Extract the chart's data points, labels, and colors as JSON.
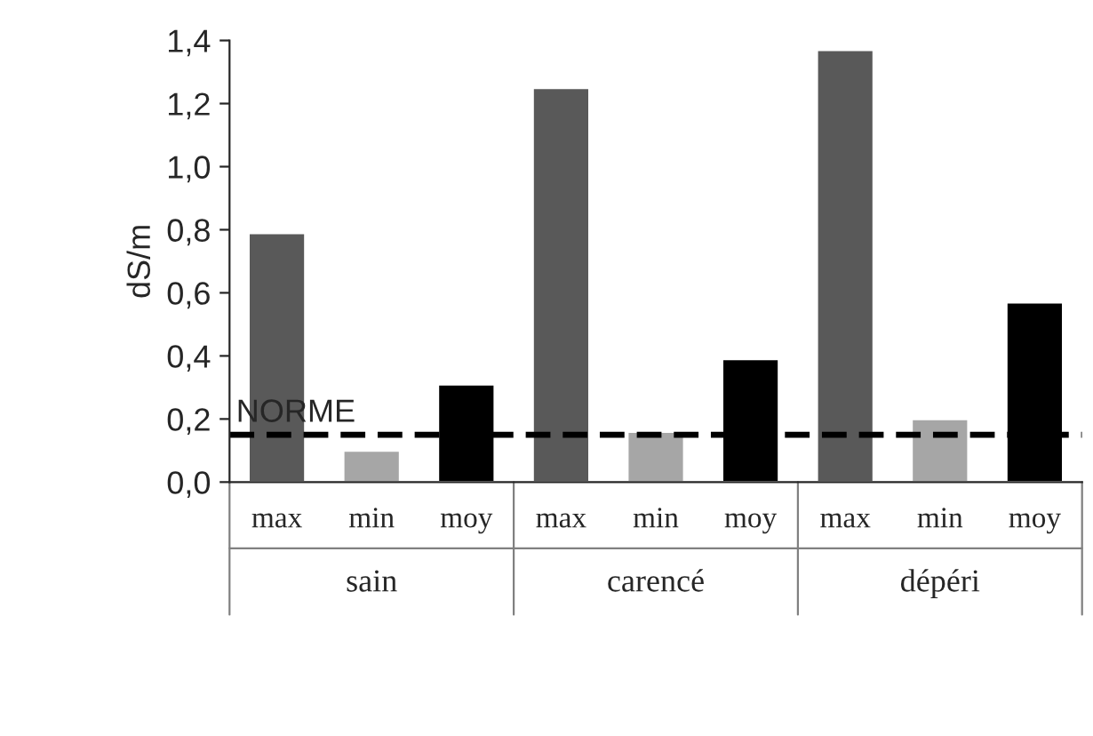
{
  "chart_data": {
    "type": "bar",
    "ylabel": "dS/m",
    "categories": [
      "max",
      "min",
      "moy",
      "max",
      "min",
      "moy",
      "max",
      "min",
      "moy"
    ],
    "values": [
      0.79,
      0.1,
      0.31,
      1.25,
      0.16,
      0.39,
      1.37,
      0.2,
      0.57
    ],
    "colors": [
      "#595959",
      "#a6a6a6",
      "#000000",
      "#595959",
      "#a6a6a6",
      "#000000",
      "#595959",
      "#a6a6a6",
      "#000000"
    ],
    "annotations": [
      "sain",
      "carencé",
      "dépéri"
    ],
    "ylim": [
      0,
      1.4
    ],
    "yticks": [
      {
        "value": 0,
        "label": "0,0"
      },
      {
        "value": 0.2,
        "label": "0,2"
      },
      {
        "value": 0.4,
        "label": "0,4"
      },
      {
        "value": 0.6,
        "label": "0,6"
      },
      {
        "value": 0.8,
        "label": "0,8"
      },
      {
        "value": 1.0,
        "label": "1,0"
      },
      {
        "value": 1.2,
        "label": "1,2"
      },
      {
        "value": 1.4,
        "label": "1,4"
      }
    ],
    "ref_lines": [
      {
        "axis": "y",
        "value": 0.15,
        "label": "NORME",
        "color": "#000000",
        "line_style": "dashed"
      }
    ],
    "grid": false,
    "legend": false
  }
}
